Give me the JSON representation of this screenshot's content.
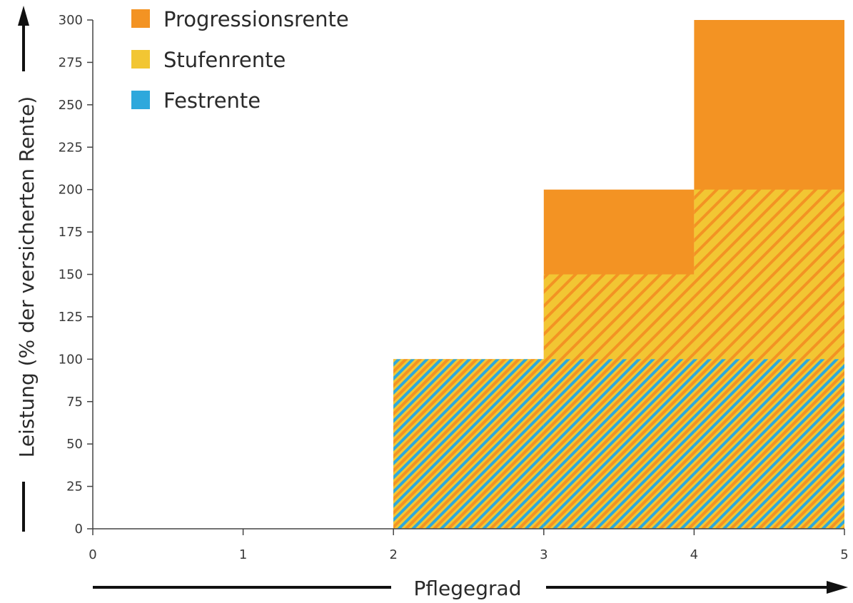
{
  "chart_data": {
    "type": "area",
    "title": "",
    "xlabel": "Pflegegrad",
    "ylabel": "Leistung (% der versicherten Rente)",
    "xlim": [
      0,
      5
    ],
    "ylim": [
      0,
      300
    ],
    "x_ticks": [
      "0",
      "1",
      "2",
      "3",
      "4",
      "5"
    ],
    "y_ticks": [
      "0",
      "25",
      "50",
      "75",
      "100",
      "125",
      "150",
      "175",
      "200",
      "225",
      "250",
      "275",
      "300"
    ],
    "grid": false,
    "legend_placement": "top-left",
    "x_intervals": [
      "2-3",
      "3-4",
      "4-5"
    ],
    "series": [
      {
        "name": "Progressionsrente",
        "color": "#F39323",
        "values": [
          100,
          200,
          300
        ]
      },
      {
        "name": "Stufenrente",
        "color": "#F2C633",
        "values": [
          100,
          150,
          200
        ]
      },
      {
        "name": "Festrente",
        "color": "#2EA8DC",
        "values": [
          100,
          100,
          100
        ]
      }
    ]
  }
}
